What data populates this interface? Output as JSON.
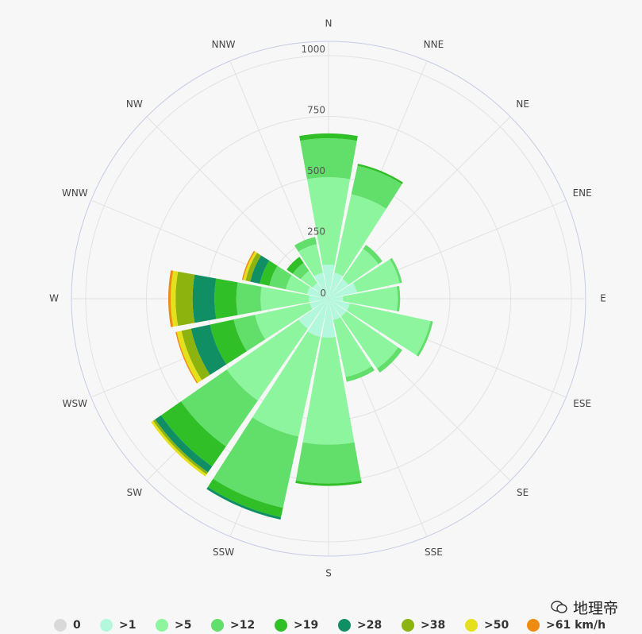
{
  "chart_data": {
    "type": "windrose",
    "directions": [
      "N",
      "NNE",
      "NE",
      "ENE",
      "E",
      "ESE",
      "SE",
      "SSE",
      "S",
      "SSW",
      "SW",
      "WSW",
      "W",
      "WNW",
      "NW",
      "NNW"
    ],
    "radial_ticks": [
      "0",
      "250",
      "500",
      "750",
      "1000"
    ],
    "radial_max": 1000,
    "bins": [
      {
        "name": "0",
        "color": "#d9d9d9"
      },
      {
        "name": ">1",
        "color": "#b3f7dc"
      },
      {
        "name": ">5",
        "color": "#8cf59d"
      },
      {
        "name": ">12",
        "color": "#62de6a"
      },
      {
        "name": ">19",
        "color": "#30bf26"
      },
      {
        "name": ">28",
        "color": "#108f64"
      },
      {
        "name": ">38",
        "color": "#8db30f"
      },
      {
        "name": ">50",
        "color": "#e4e01c"
      },
      {
        "name": ">61 km/h",
        "color": "#ee8b10"
      }
    ],
    "values": {
      "N": [
        0,
        140,
        360,
        160,
        20,
        0,
        0,
        0,
        0
      ],
      "NNE": [
        0,
        110,
        330,
        120,
        8,
        0,
        0,
        0,
        0
      ],
      "NE": [
        0,
        100,
        150,
        20,
        0,
        0,
        0,
        0,
        0
      ],
      "ENE": [
        0,
        120,
        180,
        10,
        0,
        0,
        0,
        0,
        0
      ],
      "E": [
        0,
        60,
        225,
        10,
        0,
        0,
        0,
        0,
        0
      ],
      "ESE": [
        0,
        90,
        340,
        10,
        0,
        0,
        0,
        0,
        0
      ],
      "SE": [
        0,
        90,
        260,
        20,
        0,
        0,
        0,
        0,
        0
      ],
      "SSE": [
        0,
        90,
        240,
        20,
        0,
        0,
        0,
        0,
        0
      ],
      "S": [
        0,
        160,
        440,
        160,
        10,
        0,
        0,
        0,
        0
      ],
      "SSW": [
        0,
        160,
        420,
        300,
        40,
        10,
        0,
        0,
        0
      ],
      "SW": [
        0,
        150,
        360,
        230,
        100,
        30,
        10,
        10,
        0
      ],
      "WSW": [
        0,
        80,
        230,
        90,
        100,
        80,
        40,
        20,
        5
      ],
      "W": [
        0,
        80,
        200,
        100,
        90,
        90,
        70,
        20,
        10
      ],
      "WNW": [
        0,
        90,
        90,
        70,
        40,
        40,
        20,
        10,
        5
      ],
      "NW": [
        0,
        80,
        60,
        40,
        30,
        0,
        0,
        0,
        0
      ],
      "NNW": [
        0,
        110,
        120,
        30,
        0,
        0,
        0,
        0,
        0
      ]
    }
  },
  "watermark": {
    "text": "地理帝"
  }
}
